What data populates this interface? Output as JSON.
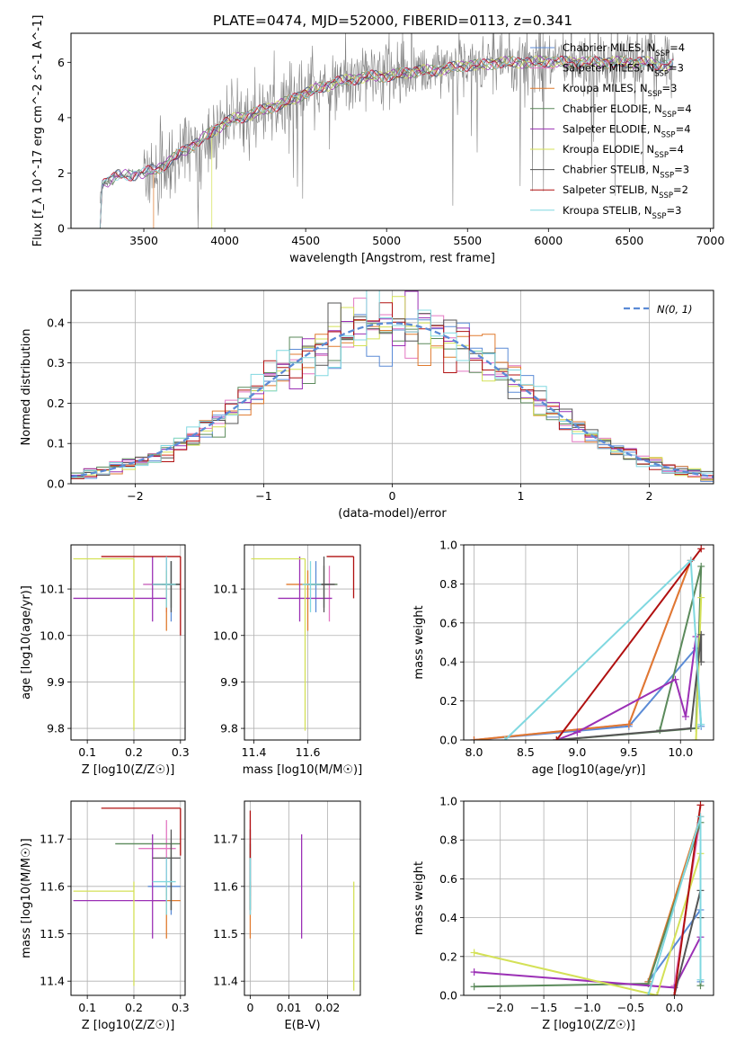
{
  "figure": {
    "title": "PLATE=0474, MJD=52000, FIBERID=0113, z=0.341"
  },
  "models": [
    {
      "name": "Chabrier MILES",
      "nssp": "4",
      "color": "#5b8bd6"
    },
    {
      "name": "Salpeter MILES",
      "nssp": "3",
      "color": "#e377c2"
    },
    {
      "name": "Kroupa MILES",
      "nssp": "3",
      "color": "#e07a2f"
    },
    {
      "name": "Chabrier ELODIE",
      "nssp": "4",
      "color": "#5b8a5b"
    },
    {
      "name": "Salpeter ELODIE",
      "nssp": "4",
      "color": "#9b30b5"
    },
    {
      "name": "Kroupa ELODIE",
      "nssp": "4",
      "color": "#d4e157"
    },
    {
      "name": "Chabrier STELIB",
      "nssp": "3",
      "color": "#555555"
    },
    {
      "name": "Salpeter STELIB",
      "nssp": "2",
      "color": "#b01010"
    },
    {
      "name": "Kroupa STELIB",
      "nssp": "3",
      "color": "#80d8e0"
    }
  ],
  "chart_data": [
    {
      "type": "line",
      "id": "spectrum",
      "xlabel": "wavelength [Angstrom, rest frame]",
      "ylabel": "Flux [f_λ 10^-17 erg cm^-2 s^-1 A^-1]",
      "xlim": [
        3050,
        7020
      ],
      "ylim": [
        0,
        7.05
      ],
      "xticks": [
        3500,
        4000,
        4500,
        5000,
        5500,
        6000,
        6500,
        7000
      ],
      "yticks": [
        0,
        2,
        4,
        6
      ],
      "x": [
        3220,
        3240,
        3260,
        3300,
        3350,
        3400,
        3450,
        3500,
        3550,
        3600,
        3650,
        3700,
        3750,
        3800,
        3850,
        3900,
        3950,
        4000,
        4050,
        4100,
        4150,
        4200,
        4300,
        4400,
        4500,
        4600,
        4700,
        4800,
        4900,
        5000,
        5100,
        5200,
        5300,
        5400,
        5500,
        5600,
        5700,
        5800,
        5900,
        6000,
        6100,
        6200,
        6300,
        6400,
        6500,
        6600,
        6700,
        6770
      ],
      "model_y": [
        0.0,
        1.55,
        1.65,
        1.8,
        1.95,
        1.9,
        1.95,
        2.0,
        2.1,
        2.2,
        2.4,
        2.6,
        2.8,
        3.0,
        3.2,
        3.4,
        3.6,
        3.8,
        3.95,
        4.0,
        4.1,
        4.2,
        4.4,
        4.6,
        4.9,
        5.1,
        5.3,
        5.4,
        5.5,
        5.5,
        5.6,
        5.7,
        5.7,
        5.8,
        5.9,
        5.9,
        6.0,
        6.0,
        6.0,
        6.05,
        6.0,
        6.0,
        6.0,
        6.0,
        6.0,
        6.0,
        5.9,
        5.9
      ],
      "data_label": "observed spectrum (grey)",
      "legend": "top-right"
    },
    {
      "type": "line",
      "id": "residual-histogram",
      "xlabel": "(data-model)/error",
      "ylabel": "Normed distribution",
      "xlim": [
        -2.5,
        2.5
      ],
      "ylim": [
        0,
        0.48
      ],
      "xticks": [
        -2,
        -1,
        0,
        1,
        2
      ],
      "yticks": [
        0.0,
        0.1,
        0.2,
        0.3,
        0.4
      ],
      "gaussian_label": "N(0, 1)",
      "bins": 50,
      "legend": "top-right"
    },
    {
      "type": "scatter",
      "id": "age-vs-Z",
      "xlabel": "Z [log10(Z/Z☉)]",
      "ylabel": "age [log10(age/yr)]",
      "xlim": [
        0.065,
        0.31
      ],
      "ylim": [
        9.775,
        10.195
      ],
      "xticks": [
        0.1,
        0.2,
        0.3
      ],
      "yticks": [
        9.8,
        9.9,
        10.0,
        10.1
      ],
      "points": [
        {
          "model": 0,
          "x": 0.28,
          "y": 10.11,
          "xerr": [
            0.06,
            0.02
          ],
          "yerr": [
            0.08,
            0.05
          ]
        },
        {
          "model": 1,
          "x": 0.27,
          "y": 10.11,
          "xerr": [
            0.05,
            0.02
          ],
          "yerr": [
            0.06,
            0.06
          ]
        },
        {
          "model": 2,
          "x": 0.27,
          "y": 10.11,
          "xerr": [
            0.03,
            0.02
          ],
          "yerr": [
            0.1,
            0.03
          ]
        },
        {
          "model": 3,
          "x": 0.28,
          "y": 10.11,
          "xerr": [
            0.02,
            0.02
          ],
          "yerr": [
            0.05,
            0.05
          ]
        },
        {
          "model": 4,
          "x": 0.24,
          "y": 10.08,
          "xerr": [
            0.17,
            0.03
          ],
          "yerr": [
            0.05,
            0.09
          ]
        },
        {
          "model": 5,
          "x": 0.2,
          "y": 10.165,
          "xerr": [
            0.13,
            0.0
          ],
          "yerr": [
            0.37,
            0.0
          ]
        },
        {
          "model": 6,
          "x": 0.28,
          "y": 10.11,
          "xerr": [
            0.04,
            0.02
          ],
          "yerr": [
            0.06,
            0.05
          ]
        },
        {
          "model": 7,
          "x": 0.3,
          "y": 10.17,
          "xerr": [
            0.17,
            0.0
          ],
          "yerr": [
            0.17,
            0.0
          ]
        },
        {
          "model": 8,
          "x": 0.27,
          "y": 10.11,
          "xerr": [
            0.03,
            0.02
          ],
          "yerr": [
            0.05,
            0.06
          ]
        }
      ]
    },
    {
      "type": "scatter",
      "id": "age-vs-mass",
      "xlabel": "mass [log10(M/M☉)]",
      "ylabel": "",
      "xlim": [
        11.365,
        11.795
      ],
      "ylim": [
        9.775,
        10.195
      ],
      "xticks": [
        11.4,
        11.6
      ],
      "yticks": [
        9.8,
        9.9,
        10.0,
        10.1
      ],
      "points": [
        {
          "model": 0,
          "x": 11.63,
          "y": 10.11,
          "xerr": [
            0.05,
            0.05
          ],
          "yerr": [
            0.06,
            0.05
          ]
        },
        {
          "model": 1,
          "x": 11.68,
          "y": 10.11,
          "xerr": [
            0.05,
            0.03
          ],
          "yerr": [
            0.08,
            0.04
          ]
        },
        {
          "model": 2,
          "x": 11.6,
          "y": 10.11,
          "xerr": [
            0.08,
            0.06
          ],
          "yerr": [
            0.1,
            0.03
          ]
        },
        {
          "model": 3,
          "x": 11.66,
          "y": 10.11,
          "xerr": [
            0.05,
            0.05
          ],
          "yerr": [
            0.05,
            0.04
          ]
        },
        {
          "model": 4,
          "x": 11.57,
          "y": 10.08,
          "xerr": [
            0.08,
            0.12
          ],
          "yerr": [
            0.05,
            0.09
          ]
        },
        {
          "model": 5,
          "x": 11.59,
          "y": 10.165,
          "xerr": [
            0.2,
            0.0
          ],
          "yerr": [
            0.37,
            0.0
          ]
        },
        {
          "model": 6,
          "x": 11.66,
          "y": 10.11,
          "xerr": [
            0.06,
            0.04
          ],
          "yerr": [
            0.06,
            0.06
          ]
        },
        {
          "model": 7,
          "x": 11.77,
          "y": 10.17,
          "xerr": [
            0.1,
            0.0
          ],
          "yerr": [
            0.09,
            0.0
          ]
        },
        {
          "model": 8,
          "x": 11.61,
          "y": 10.11,
          "xerr": [
            0.03,
            0.04
          ],
          "yerr": [
            0.06,
            0.05
          ]
        }
      ]
    },
    {
      "type": "line",
      "id": "mass-weight-vs-age",
      "xlabel": "age [log10(age/yr)]",
      "ylabel": "mass weight",
      "xlim": [
        7.9,
        10.32
      ],
      "ylim": [
        0,
        1.0
      ],
      "xticks": [
        8.0,
        8.5,
        9.0,
        9.5,
        10.0
      ],
      "yticks": [
        0.0,
        0.2,
        0.4,
        0.6,
        0.8,
        1.0
      ],
      "series": [
        {
          "model": 0,
          "x": [
            8.0,
            9.5,
            10.15,
            10.2
          ],
          "y": [
            0.0,
            0.07,
            0.47,
            0.07
          ]
        },
        {
          "model": 1,
          "x": [
            8.0,
            9.5,
            10.1
          ],
          "y": [
            0.0,
            0.08,
            0.92
          ]
        },
        {
          "model": 2,
          "x": [
            8.0,
            9.5,
            10.1
          ],
          "y": [
            0.0,
            0.08,
            0.92
          ]
        },
        {
          "model": 3,
          "x": [
            8.8,
            10.15,
            10.2,
            9.8
          ],
          "y": [
            0.0,
            0.06,
            0.89,
            0.05
          ]
        },
        {
          "model": 4,
          "x": [
            8.8,
            9.0,
            9.95,
            10.05,
            10.15
          ],
          "y": [
            0.0,
            0.04,
            0.31,
            0.12,
            0.53
          ]
        },
        {
          "model": 5,
          "x": [
            10.15,
            10.2
          ],
          "y": [
            0.0,
            0.73
          ]
        },
        {
          "model": 6,
          "x": [
            8.8,
            10.1,
            10.2,
            10.2
          ],
          "y": [
            0.0,
            0.06,
            0.54,
            0.4
          ]
        },
        {
          "model": 7,
          "x": [
            8.8,
            10.2
          ],
          "y": [
            0.0,
            0.98
          ]
        },
        {
          "model": 8,
          "x": [
            8.3,
            10.1,
            10.2
          ],
          "y": [
            0.0,
            0.92,
            0.08
          ]
        }
      ]
    },
    {
      "type": "scatter",
      "id": "mass-vs-Z",
      "xlabel": "Z [log10(Z/Z☉)]",
      "ylabel": "mass [log10(M/M☉)]",
      "xlim": [
        0.065,
        0.31
      ],
      "ylim": [
        11.37,
        11.78
      ],
      "xticks": [
        0.1,
        0.2,
        0.3
      ],
      "yticks": [
        11.4,
        11.5,
        11.6,
        11.7
      ],
      "points": [
        {
          "model": 0,
          "x": 0.28,
          "y": 11.6,
          "xerr": [
            0.05,
            0.02
          ],
          "yerr": [
            0.06,
            0.06
          ]
        },
        {
          "model": 1,
          "x": 0.27,
          "y": 11.68,
          "xerr": [
            0.06,
            0.02
          ],
          "yerr": [
            0.1,
            0.06
          ]
        },
        {
          "model": 2,
          "x": 0.27,
          "y": 11.57,
          "xerr": [
            0.03,
            0.03
          ],
          "yerr": [
            0.08,
            0.04
          ]
        },
        {
          "model": 3,
          "x": 0.28,
          "y": 11.69,
          "xerr": [
            0.12,
            0.02
          ],
          "yerr": [
            0.14,
            0.0
          ]
        },
        {
          "model": 4,
          "x": 0.24,
          "y": 11.57,
          "xerr": [
            0.17,
            0.03
          ],
          "yerr": [
            0.08,
            0.14
          ]
        },
        {
          "model": 5,
          "x": 0.2,
          "y": 11.59,
          "xerr": [
            0.13,
            0.0
          ],
          "yerr": [
            0.2,
            0.02
          ]
        },
        {
          "model": 6,
          "x": 0.28,
          "y": 11.66,
          "xerr": [
            0.04,
            0.02
          ],
          "yerr": [
            0.11,
            0.06
          ]
        },
        {
          "model": 7,
          "x": 0.3,
          "y": 11.765,
          "xerr": [
            0.17,
            0.0
          ],
          "yerr": [
            0.1,
            0.0
          ]
        },
        {
          "model": 8,
          "x": 0.27,
          "y": 11.61,
          "xerr": [
            0.03,
            0.02
          ],
          "yerr": [
            0.07,
            0.05
          ]
        }
      ]
    },
    {
      "type": "scatter",
      "id": "mass-vs-ebv",
      "xlabel": "E(B-V)",
      "ylabel": "",
      "xlim": [
        -0.0015,
        0.0285
      ],
      "ylim": [
        11.37,
        11.78
      ],
      "xticks": [
        0.0,
        0.01,
        0.02
      ],
      "yticks": [
        11.4,
        11.5,
        11.6,
        11.7
      ],
      "points": [
        {
          "model": 0,
          "x": 0.0,
          "y": 11.6,
          "xerr": [
            0,
            0
          ],
          "yerr": [
            0.06,
            0.06
          ]
        },
        {
          "model": 1,
          "x": 0.0,
          "y": 11.68,
          "xerr": [
            0,
            0
          ],
          "yerr": [
            0.1,
            0.06
          ]
        },
        {
          "model": 2,
          "x": 0.0,
          "y": 11.57,
          "xerr": [
            0,
            0
          ],
          "yerr": [
            0.08,
            0.04
          ]
        },
        {
          "model": 3,
          "x": 0.0,
          "y": 11.69,
          "xerr": [
            0,
            0
          ],
          "yerr": [
            0.14,
            0.0
          ]
        },
        {
          "model": 4,
          "x": 0.0133,
          "y": 11.6,
          "xerr": [
            0,
            0
          ],
          "yerr": [
            0.11,
            0.11
          ]
        },
        {
          "model": 5,
          "x": 0.0268,
          "y": 11.5,
          "xerr": [
            0,
            0
          ],
          "yerr": [
            0.12,
            0.11
          ]
        },
        {
          "model": 6,
          "x": 0.0,
          "y": 11.66,
          "xerr": [
            0,
            0
          ],
          "yerr": [
            0.11,
            0.06
          ]
        },
        {
          "model": 7,
          "x": 0.0,
          "y": 11.7,
          "xerr": [
            0,
            0
          ],
          "yerr": [
            0.04,
            0.06
          ]
        },
        {
          "model": 8,
          "x": 0.0,
          "y": 11.61,
          "xerr": [
            0,
            0
          ],
          "yerr": [
            0.07,
            0.05
          ]
        }
      ]
    },
    {
      "type": "line",
      "id": "mass-weight-vs-Z",
      "xlabel": "Z [log10(Z/Z☉)]",
      "ylabel": "mass weight",
      "xlim": [
        -2.42,
        0.45
      ],
      "ylim": [
        0,
        1.0
      ],
      "xticks": [
        -2.0,
        -1.5,
        -1.0,
        -0.5,
        0.0
      ],
      "yticks": [
        0.0,
        0.2,
        0.4,
        0.6,
        0.8,
        1.0
      ],
      "series": [
        {
          "model": 0,
          "x": [
            -0.3,
            0.3,
            0.3
          ],
          "y": [
            0.07,
            0.44,
            0.07
          ]
        },
        {
          "model": 1,
          "x": [
            0.0,
            0.3
          ],
          "y": [
            0.05,
            0.92
          ]
        },
        {
          "model": 2,
          "x": [
            -0.3,
            0.3
          ],
          "y": [
            0.07,
            0.92
          ]
        },
        {
          "model": 3,
          "x": [
            -2.3,
            -0.3,
            0.3,
            0.3
          ],
          "y": [
            0.045,
            0.06,
            0.89,
            0.05
          ]
        },
        {
          "model": 4,
          "x": [
            -2.3,
            0.0,
            0.3
          ],
          "y": [
            0.12,
            0.04,
            0.3
          ]
        },
        {
          "model": 5,
          "x": [
            -2.3,
            -0.2,
            0.3
          ],
          "y": [
            0.22,
            0.0,
            0.73
          ]
        },
        {
          "model": 6,
          "x": [
            0.0,
            0.3,
            0.3
          ],
          "y": [
            0.0,
            0.54,
            0.4
          ]
        },
        {
          "model": 7,
          "x": [
            0.0,
            0.3
          ],
          "y": [
            0.0,
            0.98
          ]
        },
        {
          "model": 8,
          "x": [
            -0.3,
            0.3,
            0.3
          ],
          "y": [
            0.0,
            0.92,
            0.08
          ]
        }
      ]
    }
  ]
}
